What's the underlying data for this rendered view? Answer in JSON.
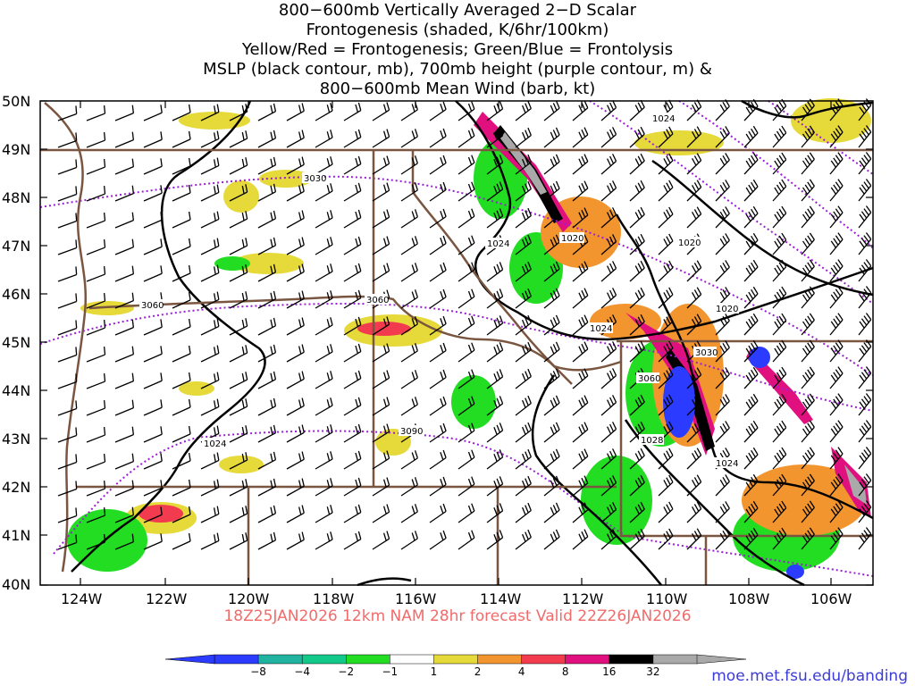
{
  "title_lines": [
    "800−600mb Vertically Averaged 2−D Scalar",
    "Frontogenesis (shaded, K/6hr/100km)",
    "Yellow/Red = Frontogenesis;  Green/Blue = Frontolysis",
    "MSLP (black contour, mb), 700mb height (purple contour, m) &",
    "800−600mb Mean Wind (barb, kt)"
  ],
  "lat_labels": [
    "50N",
    "49N",
    "48N",
    "47N",
    "46N",
    "45N",
    "44N",
    "43N",
    "42N",
    "41N",
    "40N"
  ],
  "lon_labels": [
    "124W",
    "122W",
    "120W",
    "118W",
    "116W",
    "114W",
    "112W",
    "110W",
    "108W",
    "106W"
  ],
  "height_contour_labels": [
    "3030",
    "3060",
    "3060",
    "3090",
    "3030",
    "3060"
  ],
  "mslp_contour_labels": [
    "1024",
    "1024",
    "1020",
    "1020",
    "1020",
    "1024",
    "1028",
    "1024",
    "1024"
  ],
  "footer": {
    "run_text": "18Z25JAN2026 12km NAM 28hr forecast Valid 22Z26JAN2026",
    "credit": "moe.met.fsu.edu/banding"
  },
  "colorbar": {
    "labels": [
      "−8",
      "−4",
      "−2",
      "−1",
      "1",
      "2",
      "4",
      "8",
      "16",
      "32"
    ],
    "colors": [
      "#2b3bff",
      "#1fb3a0",
      "#12c98a",
      "#22dd22",
      "#ffffff",
      "#e6d93a",
      "#f2952f",
      "#f23b4e",
      "#e0117f",
      "#000000",
      "#a9a9a9"
    ]
  },
  "colors": {
    "title": "#000000",
    "footer_run": "#f26b6b",
    "credit": "#3b3bd6",
    "mslp": "#000000",
    "height": "#9b1fd6",
    "border": "#7a5540"
  }
}
